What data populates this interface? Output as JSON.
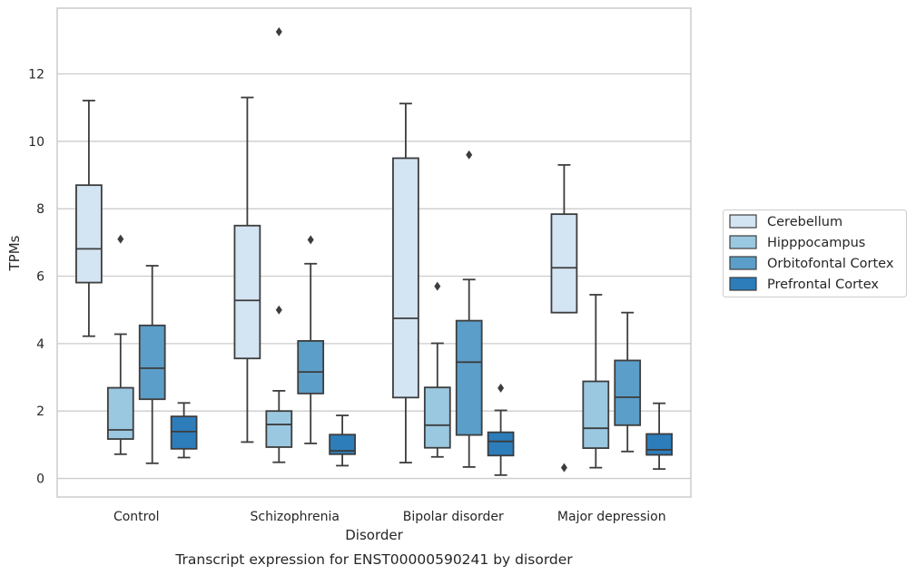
{
  "caption": "Transcript expression for ENST00000590241 by disorder",
  "chart_data": {
    "type": "boxplot",
    "xlabel": "Disorder",
    "ylabel": "TPMs",
    "ylim": [
      -0.55,
      13.95
    ],
    "yticks": [
      0,
      2,
      4,
      6,
      8,
      10,
      12
    ],
    "grid": "horizontal",
    "legend_position": "right",
    "categories": [
      "Control",
      "Schizophrenia",
      "Bipolar disorder",
      "Major depression"
    ],
    "series": [
      {
        "name": "Cerebellum",
        "color": "#d3e4f3",
        "boxes": [
          {
            "whislo": 4.22,
            "q1": 5.81,
            "med": 6.81,
            "q3": 8.7,
            "whishi": 11.21,
            "fliers": []
          },
          {
            "whislo": 1.08,
            "q1": 3.56,
            "med": 5.28,
            "q3": 7.5,
            "whishi": 11.3,
            "fliers": []
          },
          {
            "whislo": 0.47,
            "q1": 2.4,
            "med": 4.75,
            "q3": 9.5,
            "whishi": 11.12,
            "fliers": []
          },
          {
            "whislo": 4.92,
            "q1": 4.92,
            "med": 6.25,
            "q3": 7.84,
            "whishi": 9.3,
            "fliers": [
              0.32
            ]
          }
        ]
      },
      {
        "name": "Hipppocampus",
        "color": "#9ac8e0",
        "boxes": [
          {
            "whislo": 0.72,
            "q1": 1.17,
            "med": 1.44,
            "q3": 2.69,
            "whishi": 4.28,
            "fliers": [
              7.1
            ]
          },
          {
            "whislo": 0.48,
            "q1": 0.93,
            "med": 1.6,
            "q3": 2.0,
            "whishi": 2.6,
            "fliers": [
              5.0,
              13.25
            ]
          },
          {
            "whislo": 0.64,
            "q1": 0.91,
            "med": 1.58,
            "q3": 2.7,
            "whishi": 4.01,
            "fliers": [
              5.7
            ]
          },
          {
            "whislo": 0.32,
            "q1": 0.9,
            "med": 1.49,
            "q3": 2.88,
            "whishi": 5.45,
            "fliers": []
          }
        ]
      },
      {
        "name": "Orbitofontal Cortex",
        "color": "#5b9ec9",
        "boxes": [
          {
            "whislo": 0.45,
            "q1": 2.35,
            "med": 3.27,
            "q3": 4.54,
            "whishi": 6.31,
            "fliers": []
          },
          {
            "whislo": 1.04,
            "q1": 2.52,
            "med": 3.16,
            "q3": 4.08,
            "whishi": 6.37,
            "fliers": [
              7.08
            ]
          },
          {
            "whislo": 0.34,
            "q1": 1.29,
            "med": 3.45,
            "q3": 4.68,
            "whishi": 5.9,
            "fliers": [
              9.6
            ]
          },
          {
            "whislo": 0.8,
            "q1": 1.58,
            "med": 2.41,
            "q3": 3.5,
            "whishi": 4.92,
            "fliers": []
          }
        ]
      },
      {
        "name": "Prefrontal Cortex",
        "color": "#2d7dbb",
        "boxes": [
          {
            "whislo": 0.62,
            "q1": 0.88,
            "med": 1.39,
            "q3": 1.84,
            "whishi": 2.24,
            "fliers": []
          },
          {
            "whislo": 0.38,
            "q1": 0.72,
            "med": 0.82,
            "q3": 1.3,
            "whishi": 1.87,
            "fliers": []
          },
          {
            "whislo": 0.1,
            "q1": 0.68,
            "med": 1.1,
            "q3": 1.37,
            "whishi": 2.02,
            "fliers": [
              2.68
            ]
          },
          {
            "whislo": 0.28,
            "q1": 0.7,
            "med": 0.85,
            "q3": 1.32,
            "whishi": 2.23,
            "fliers": []
          }
        ]
      }
    ]
  }
}
